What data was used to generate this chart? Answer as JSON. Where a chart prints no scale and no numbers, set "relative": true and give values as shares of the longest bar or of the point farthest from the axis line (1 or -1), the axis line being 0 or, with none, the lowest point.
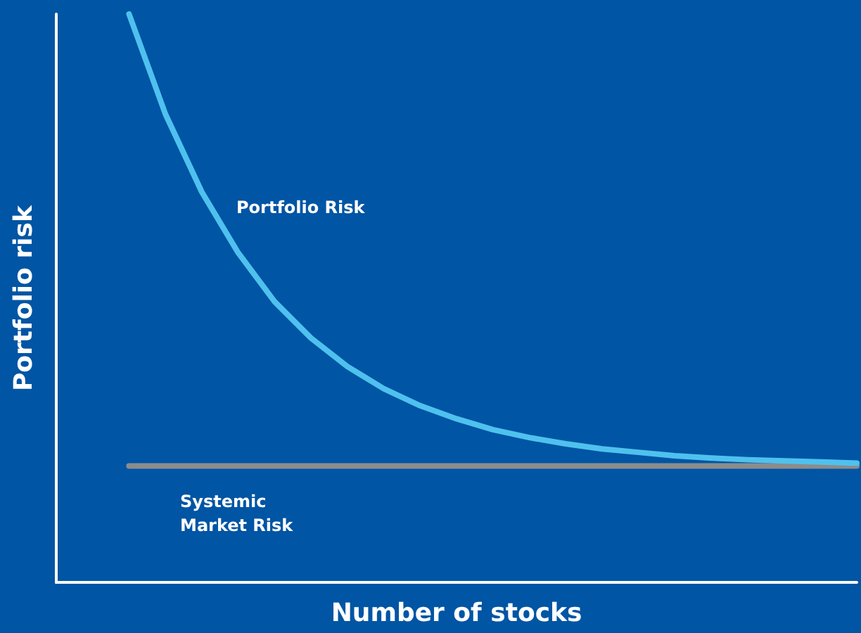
{
  "chart_data": {
    "type": "line",
    "relative": true,
    "xlabel": "Number of stocks",
    "ylabel": "Portfolio risk",
    "categories": [
      null,
      null,
      null,
      null,
      null,
      null,
      null,
      null,
      null,
      null,
      null,
      null,
      null,
      null,
      null,
      null,
      null,
      null,
      null,
      null,
      null,
      null,
      null
    ],
    "series": [
      {
        "color": "#4fc1ee",
        "values": [
          null,
          null,
          1.0,
          0.824,
          0.687,
          0.58,
          0.494,
          0.43,
          0.38,
          0.341,
          0.311,
          0.288,
          0.269,
          0.255,
          0.244,
          0.235,
          0.229,
          0.223,
          0.219,
          0.216,
          0.214,
          0.212,
          0.21
        ]
      },
      {
        "color": "#8c8c8c",
        "values": [
          null,
          null,
          0.205,
          0.205,
          0.205,
          0.205,
          0.205,
          0.205,
          0.205,
          0.205,
          0.205,
          0.205,
          0.205,
          0.205,
          0.205,
          0.205,
          0.205,
          0.205,
          0.205,
          0.205,
          0.205,
          0.205,
          0.205
        ]
      }
    ],
    "annotations": [
      "Portfolio Risk",
      "Systemic\nMarket Risk"
    ],
    "marker": "none",
    "grid": false
  }
}
